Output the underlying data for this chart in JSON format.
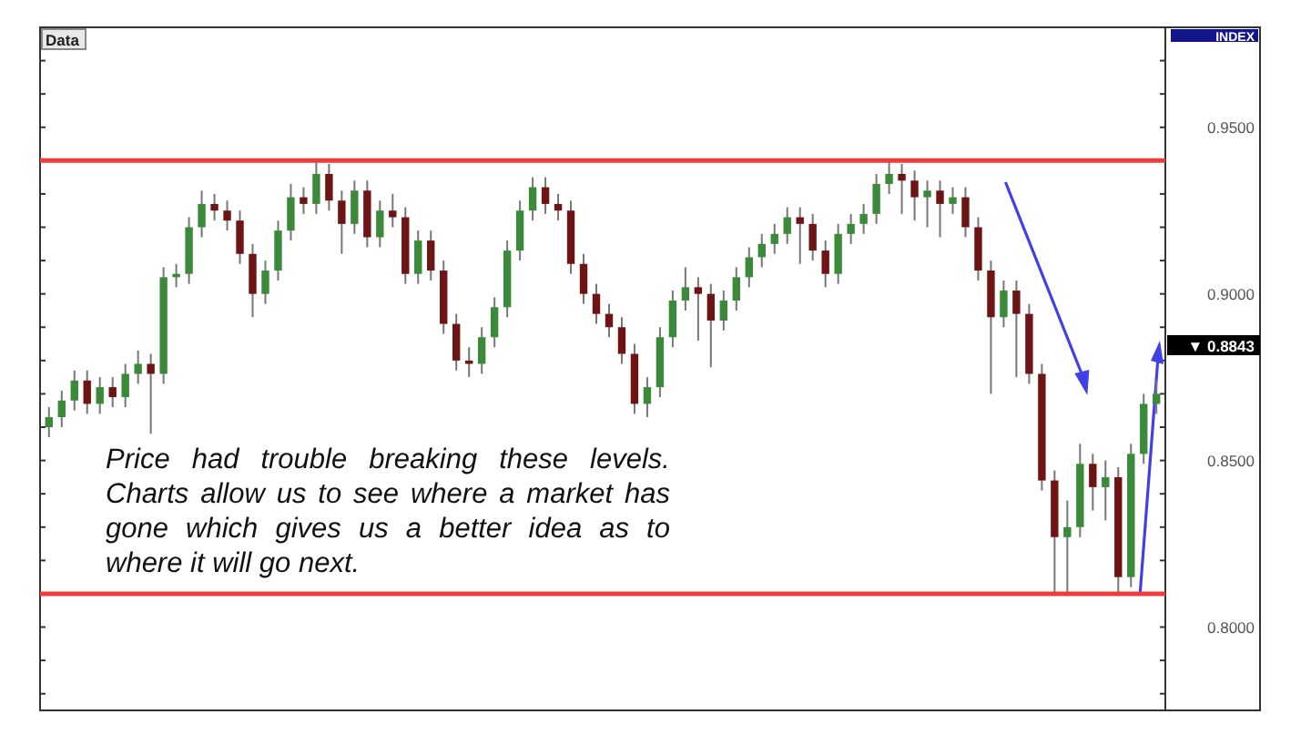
{
  "chart_data": {
    "type": "candlestick",
    "annotations": [
      "Price had trouble breaking these levels. Charts allow us to see where a market has gone which gives us a better idea as to where it will go next.",
      "Data",
      "INDEX",
      "▼ 0.8843"
    ],
    "categories": [
      null,
      null,
      null,
      null,
      null,
      null,
      null,
      null,
      null,
      null,
      null,
      null,
      null,
      null,
      null,
      null,
      null,
      null,
      null,
      null,
      null,
      null,
      null,
      null,
      null,
      null,
      null,
      null,
      null,
      null,
      null,
      null,
      null,
      null,
      null,
      null,
      null,
      null,
      null,
      null,
      null,
      null,
      null,
      null,
      null,
      null,
      null,
      null,
      null,
      null,
      null,
      null,
      null,
      null,
      null,
      null,
      null,
      null,
      null,
      null,
      null,
      null,
      null,
      null,
      null,
      null,
      null,
      null,
      null,
      null,
      null,
      null,
      null,
      null,
      null,
      null,
      null,
      null,
      null,
      null,
      null,
      null,
      null,
      null,
      null,
      null,
      null,
      null
    ],
    "ohlc": [
      [
        0.86,
        0.866,
        0.857,
        0.863
      ],
      [
        0.863,
        0.871,
        0.86,
        0.868
      ],
      [
        0.868,
        0.877,
        0.865,
        0.874
      ],
      [
        0.874,
        0.877,
        0.864,
        0.867
      ],
      [
        0.867,
        0.875,
        0.864,
        0.872
      ],
      [
        0.872,
        0.875,
        0.866,
        0.869
      ],
      [
        0.869,
        0.879,
        0.866,
        0.876
      ],
      [
        0.876,
        0.883,
        0.873,
        0.879
      ],
      [
        0.879,
        0.882,
        0.858,
        0.876
      ],
      [
        0.876,
        0.908,
        0.873,
        0.905
      ],
      [
        0.905,
        0.909,
        0.902,
        0.906
      ],
      [
        0.906,
        0.923,
        0.903,
        0.92
      ],
      [
        0.92,
        0.931,
        0.917,
        0.927
      ],
      [
        0.927,
        0.93,
        0.922,
        0.925
      ],
      [
        0.925,
        0.928,
        0.919,
        0.922
      ],
      [
        0.922,
        0.925,
        0.909,
        0.912
      ],
      [
        0.912,
        0.915,
        0.893,
        0.9
      ],
      [
        0.9,
        0.91,
        0.897,
        0.907
      ],
      [
        0.907,
        0.922,
        0.904,
        0.919
      ],
      [
        0.919,
        0.933,
        0.916,
        0.929
      ],
      [
        0.929,
        0.932,
        0.924,
        0.927
      ],
      [
        0.927,
        0.94,
        0.924,
        0.936
      ],
      [
        0.936,
        0.939,
        0.925,
        0.928
      ],
      [
        0.928,
        0.931,
        0.912,
        0.921
      ],
      [
        0.921,
        0.934,
        0.918,
        0.931
      ],
      [
        0.931,
        0.934,
        0.914,
        0.917
      ],
      [
        0.917,
        0.928,
        0.914,
        0.925
      ],
      [
        0.925,
        0.93,
        0.92,
        0.923
      ],
      [
        0.923,
        0.926,
        0.903,
        0.906
      ],
      [
        0.906,
        0.919,
        0.903,
        0.916
      ],
      [
        0.916,
        0.919,
        0.904,
        0.907
      ],
      [
        0.907,
        0.91,
        0.888,
        0.891
      ],
      [
        0.891,
        0.894,
        0.877,
        0.88
      ],
      [
        0.88,
        0.884,
        0.875,
        0.879
      ],
      [
        0.879,
        0.89,
        0.876,
        0.887
      ],
      [
        0.887,
        0.899,
        0.884,
        0.896
      ],
      [
        0.896,
        0.916,
        0.893,
        0.913
      ],
      [
        0.913,
        0.928,
        0.91,
        0.925
      ],
      [
        0.925,
        0.935,
        0.922,
        0.932
      ],
      [
        0.932,
        0.935,
        0.924,
        0.927
      ],
      [
        0.927,
        0.93,
        0.922,
        0.925
      ],
      [
        0.925,
        0.928,
        0.906,
        0.909
      ],
      [
        0.909,
        0.912,
        0.897,
        0.9
      ],
      [
        0.9,
        0.903,
        0.891,
        0.894
      ],
      [
        0.894,
        0.897,
        0.887,
        0.89
      ],
      [
        0.89,
        0.893,
        0.879,
        0.882
      ],
      [
        0.882,
        0.885,
        0.864,
        0.867
      ],
      [
        0.867,
        0.875,
        0.863,
        0.872
      ],
      [
        0.872,
        0.89,
        0.869,
        0.887
      ],
      [
        0.887,
        0.901,
        0.884,
        0.898
      ],
      [
        0.898,
        0.908,
        0.895,
        0.902
      ],
      [
        0.902,
        0.905,
        0.886,
        0.9
      ],
      [
        0.9,
        0.903,
        0.878,
        0.892
      ],
      [
        0.892,
        0.901,
        0.889,
        0.898
      ],
      [
        0.898,
        0.908,
        0.895,
        0.905
      ],
      [
        0.905,
        0.914,
        0.902,
        0.911
      ],
      [
        0.911,
        0.918,
        0.908,
        0.915
      ],
      [
        0.915,
        0.921,
        0.912,
        0.918
      ],
      [
        0.918,
        0.926,
        0.915,
        0.923
      ],
      [
        0.923,
        0.926,
        0.909,
        0.921
      ],
      [
        0.921,
        0.924,
        0.91,
        0.913
      ],
      [
        0.913,
        0.916,
        0.902,
        0.906
      ],
      [
        0.906,
        0.921,
        0.903,
        0.918
      ],
      [
        0.918,
        0.924,
        0.915,
        0.921
      ],
      [
        0.921,
        0.927,
        0.918,
        0.924
      ],
      [
        0.924,
        0.936,
        0.921,
        0.933
      ],
      [
        0.933,
        0.94,
        0.93,
        0.936
      ],
      [
        0.936,
        0.939,
        0.924,
        0.934
      ],
      [
        0.934,
        0.937,
        0.922,
        0.929
      ],
      [
        0.929,
        0.934,
        0.92,
        0.931
      ],
      [
        0.931,
        0.934,
        0.917,
        0.927
      ],
      [
        0.927,
        0.932,
        0.924,
        0.929
      ],
      [
        0.929,
        0.932,
        0.917,
        0.92
      ],
      [
        0.92,
        0.923,
        0.904,
        0.907
      ],
      [
        0.907,
        0.91,
        0.87,
        0.893
      ],
      [
        0.893,
        0.904,
        0.89,
        0.901
      ],
      [
        0.901,
        0.904,
        0.875,
        0.894
      ],
      [
        0.894,
        0.897,
        0.873,
        0.876
      ],
      [
        0.876,
        0.879,
        0.841,
        0.844
      ],
      [
        0.844,
        0.847,
        0.81,
        0.827
      ],
      [
        0.827,
        0.838,
        0.81,
        0.83
      ],
      [
        0.83,
        0.855,
        0.827,
        0.849
      ],
      [
        0.849,
        0.852,
        0.835,
        0.842
      ],
      [
        0.842,
        0.85,
        0.832,
        0.845
      ],
      [
        0.845,
        0.848,
        0.81,
        0.815
      ],
      [
        0.815,
        0.855,
        0.812,
        0.852
      ],
      [
        0.852,
        0.87,
        0.849,
        0.867
      ],
      [
        0.867,
        0.874,
        0.864,
        0.87
      ]
    ],
    "ref_lines": [
      {
        "axis": "y",
        "value": 0.94,
        "color": "#f03c3c"
      },
      {
        "axis": "y",
        "value": 0.81,
        "color": "#f03c3c"
      }
    ],
    "ylim": [
      0.775,
      0.98
    ],
    "yticks": [
      {
        "value": 0.78,
        "label": null
      },
      {
        "value": 0.79,
        "label": null
      },
      {
        "value": 0.8,
        "label": "0.8000"
      },
      {
        "value": 0.81,
        "label": null
      },
      {
        "value": 0.82,
        "label": null
      },
      {
        "value": 0.83,
        "label": null
      },
      {
        "value": 0.84,
        "label": null
      },
      {
        "value": 0.85,
        "label": "0.8500"
      },
      {
        "value": 0.86,
        "label": null
      },
      {
        "value": 0.87,
        "label": null
      },
      {
        "value": 0.88,
        "label": null
      },
      {
        "value": 0.89,
        "label": null
      },
      {
        "value": 0.9,
        "label": "0.9000"
      },
      {
        "value": 0.91,
        "label": null
      },
      {
        "value": 0.92,
        "label": null
      },
      {
        "value": 0.93,
        "label": null
      },
      {
        "value": 0.94,
        "label": null
      },
      {
        "value": 0.95,
        "label": "0.9500"
      },
      {
        "value": 0.96,
        "label": null
      },
      {
        "value": 0.97,
        "label": null
      }
    ],
    "tick_labels": "y"
  }
}
